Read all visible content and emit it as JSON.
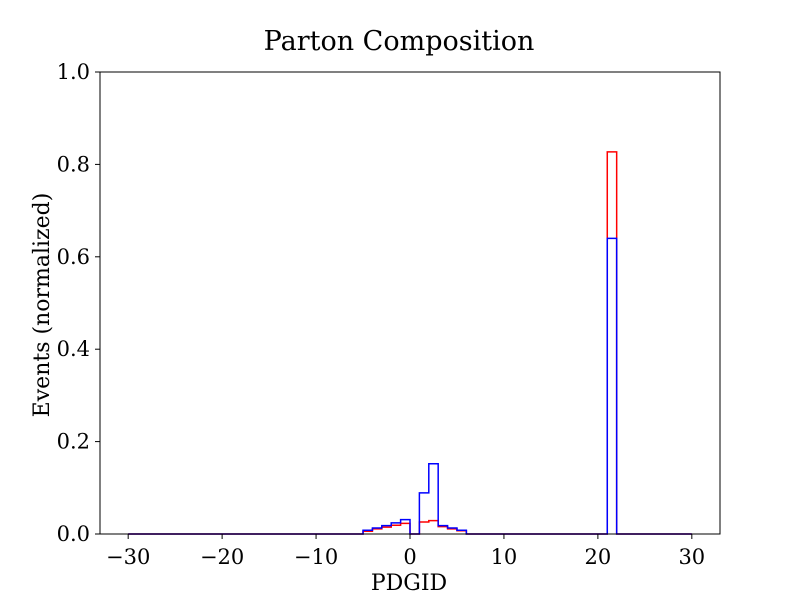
{
  "chart_data": {
    "type": "histogram",
    "title": "Parton Composition",
    "xlabel": "PDGID",
    "ylabel": "Events (normalized)",
    "xlim": [
      -33,
      33
    ],
    "ylim": [
      0,
      1.0
    ],
    "xticks": [
      -30,
      -20,
      -10,
      0,
      10,
      20,
      30
    ],
    "xtick_labels": [
      "−30",
      "−20",
      "−10",
      "0",
      "10",
      "20",
      "30"
    ],
    "yticks": [
      0.0,
      0.2,
      0.4,
      0.6,
      0.8,
      1.0
    ],
    "ytick_labels": [
      "0.0",
      "0.2",
      "0.4",
      "0.6",
      "0.8",
      "1.0"
    ],
    "grid": false,
    "series": [
      {
        "color": "#ff0000",
        "bins": [
          {
            "x0": -30,
            "x1": -5,
            "y": 0.0
          },
          {
            "x0": -5,
            "x1": -4,
            "y": 0.006
          },
          {
            "x0": -4,
            "x1": -3,
            "y": 0.011
          },
          {
            "x0": -3,
            "x1": -2,
            "y": 0.015
          },
          {
            "x0": -2,
            "x1": -1,
            "y": 0.019
          },
          {
            "x0": -1,
            "x1": 0,
            "y": 0.023
          },
          {
            "x0": 0,
            "x1": 1,
            "y": 0.0
          },
          {
            "x0": 1,
            "x1": 2,
            "y": 0.026
          },
          {
            "x0": 2,
            "x1": 3,
            "y": 0.029
          },
          {
            "x0": 3,
            "x1": 4,
            "y": 0.016
          },
          {
            "x0": 4,
            "x1": 5,
            "y": 0.011
          },
          {
            "x0": 5,
            "x1": 6,
            "y": 0.007
          },
          {
            "x0": 6,
            "x1": 21,
            "y": 0.0
          },
          {
            "x0": 21,
            "x1": 22,
            "y": 0.827
          },
          {
            "x0": 22,
            "x1": 30,
            "y": 0.0
          }
        ]
      },
      {
        "color": "#0000ff",
        "bins": [
          {
            "x0": -30,
            "x1": -5,
            "y": 0.0
          },
          {
            "x0": -5,
            "x1": -4,
            "y": 0.008
          },
          {
            "x0": -4,
            "x1": -3,
            "y": 0.013
          },
          {
            "x0": -3,
            "x1": -2,
            "y": 0.018
          },
          {
            "x0": -2,
            "x1": -1,
            "y": 0.024
          },
          {
            "x0": -1,
            "x1": 0,
            "y": 0.031
          },
          {
            "x0": 0,
            "x1": 1,
            "y": 0.0
          },
          {
            "x0": 1,
            "x1": 2,
            "y": 0.089
          },
          {
            "x0": 2,
            "x1": 3,
            "y": 0.152
          },
          {
            "x0": 3,
            "x1": 4,
            "y": 0.018
          },
          {
            "x0": 4,
            "x1": 5,
            "y": 0.013
          },
          {
            "x0": 5,
            "x1": 6,
            "y": 0.008
          },
          {
            "x0": 6,
            "x1": 21,
            "y": 0.0
          },
          {
            "x0": 21,
            "x1": 22,
            "y": 0.64
          },
          {
            "x0": 22,
            "x1": 30,
            "y": 0.0
          }
        ]
      }
    ]
  }
}
